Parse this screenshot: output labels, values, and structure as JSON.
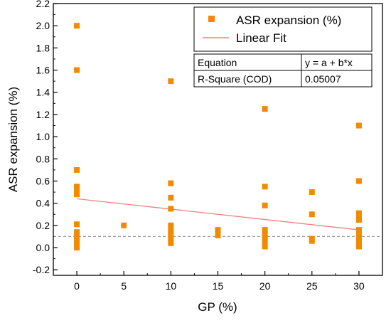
{
  "chart_data": {
    "type": "scatter",
    "xlabel": "GP (%)",
    "ylabel": "ASR expansion (%)",
    "xlim": [
      -2.5,
      32.5
    ],
    "ylim": [
      -0.25,
      2.2
    ],
    "xticks": [
      0,
      5,
      10,
      15,
      20,
      25,
      30
    ],
    "yticks": [
      -0.2,
      0.0,
      0.2,
      0.4,
      0.6,
      0.8,
      1.0,
      1.2,
      1.4,
      1.6,
      1.8,
      2.0,
      2.2
    ],
    "x_tick_labels": [
      "0",
      "5",
      "10",
      "15",
      "20",
      "25",
      "30"
    ],
    "y_tick_labels": [
      "-0.2",
      "0.0",
      "0.2",
      "0.4",
      "0.6",
      "0.8",
      "1.0",
      "1.2",
      "1.4",
      "1.6",
      "1.8",
      "2.0",
      "2.2"
    ],
    "grid": false,
    "legend_position": "top-right",
    "series": [
      {
        "name": "ASR expansion (%)",
        "color": "#f28a00",
        "marker": "square",
        "points": [
          [
            0,
            2.0
          ],
          [
            0,
            1.6
          ],
          [
            0,
            0.7
          ],
          [
            0,
            0.55
          ],
          [
            0,
            0.52
          ],
          [
            0,
            0.48
          ],
          [
            0,
            0.21
          ],
          [
            0,
            0.14
          ],
          [
            0,
            0.1
          ],
          [
            0,
            0.05
          ],
          [
            0,
            0.0
          ],
          [
            5,
            0.2
          ],
          [
            10,
            1.5
          ],
          [
            10,
            0.58
          ],
          [
            10,
            0.45
          ],
          [
            10,
            0.35
          ],
          [
            10,
            0.2
          ],
          [
            10,
            0.15
          ],
          [
            10,
            0.12
          ],
          [
            10,
            0.08
          ],
          [
            10,
            0.04
          ],
          [
            15,
            0.16
          ],
          [
            15,
            0.13
          ],
          [
            15,
            0.11
          ],
          [
            20,
            1.25
          ],
          [
            20,
            0.55
          ],
          [
            20,
            0.38
          ],
          [
            20,
            0.16
          ],
          [
            20,
            0.13
          ],
          [
            20,
            0.1
          ],
          [
            20,
            0.07
          ],
          [
            20,
            0.04
          ],
          [
            20,
            0.01
          ],
          [
            25,
            0.5
          ],
          [
            25,
            0.3
          ],
          [
            25,
            0.08
          ],
          [
            25,
            0.06
          ],
          [
            30,
            1.1
          ],
          [
            30,
            0.6
          ],
          [
            30,
            0.31
          ],
          [
            30,
            0.28
          ],
          [
            30,
            0.25
          ],
          [
            30,
            0.16
          ],
          [
            30,
            0.13
          ],
          [
            30,
            0.1
          ],
          [
            30,
            0.07
          ],
          [
            30,
            0.04
          ],
          [
            30,
            0.01
          ]
        ]
      },
      {
        "name": "Linear Fit",
        "type": "line",
        "color": "#f08080",
        "points": [
          [
            0,
            0.44
          ],
          [
            30,
            0.16
          ]
        ]
      }
    ],
    "reference_line": {
      "y": 0.1,
      "color": "#8c8c8c",
      "style": "dashed"
    },
    "fit_table": {
      "rows": [
        [
          "Equation",
          "y = a + b*x"
        ],
        [
          "R-Square (COD)",
          "0.05007"
        ]
      ]
    }
  }
}
